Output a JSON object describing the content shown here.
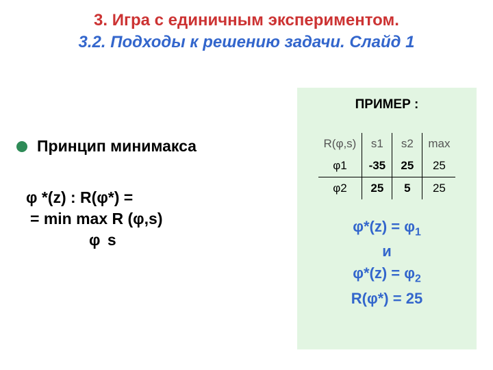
{
  "title": {
    "line1": "3. Игра с единичным экспериментом.",
    "line2": "3.2. Подходы к решению задачи.  Слайд 1"
  },
  "left": {
    "heading": "Принцип минимакса",
    "formula_l1": "φ *(z) :  R(φ*) =",
    "formula_l2": "=  min max R (φ,s)",
    "formula_l3": "φ       s"
  },
  "example": {
    "title": "ПРИМЕР :",
    "colhead": {
      "c0": "R(φ,s)",
      "c1": "s1",
      "c2": "s2",
      "c3": "max"
    },
    "row1": {
      "label": "φ1",
      "v1": "-35",
      "v2": "25",
      "max": "25"
    },
    "row2": {
      "label": "φ2",
      "v1": "25",
      "v2": "5",
      "max": "25"
    },
    "conclusion": {
      "l1a": "φ*(z) = φ",
      "l1sub": "1",
      "l2": "и",
      "l3a": "φ*(z) = φ",
      "l3sub": "2",
      "l4": "R(φ*) = 25"
    }
  }
}
